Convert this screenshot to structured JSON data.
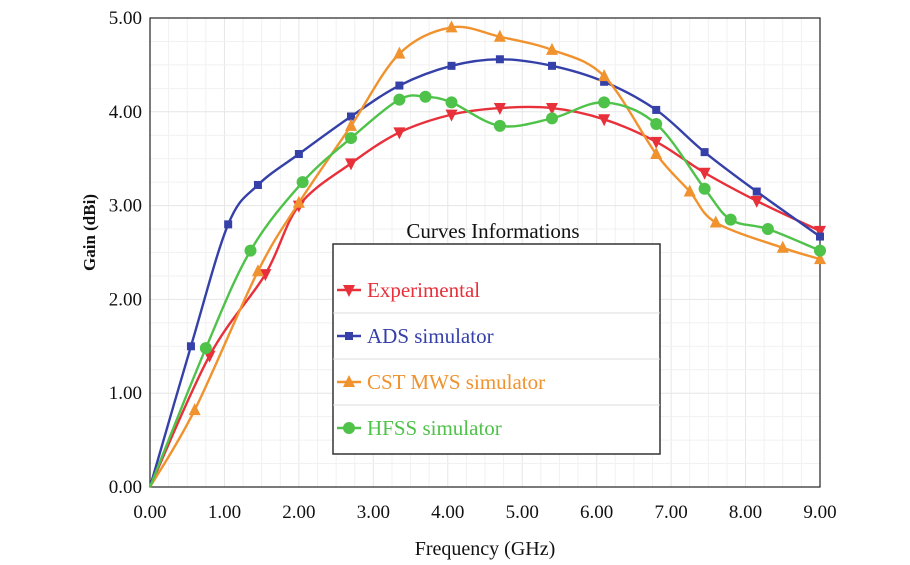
{
  "chart_data": {
    "type": "line",
    "title": "",
    "xlabel": "Frequency (GHz)",
    "ylabel": "Gain (dBi)",
    "xlim": [
      0,
      9
    ],
    "ylim": [
      0,
      5
    ],
    "x_ticks": [
      "0.00",
      "1.00",
      "2.00",
      "3.00",
      "4.00",
      "5.00",
      "6.00",
      "7.00",
      "8.00",
      "9.00"
    ],
    "y_ticks": [
      "0.00",
      "1.00",
      "2.00",
      "3.00",
      "4.00",
      "5.00"
    ],
    "grid": true,
    "legend": {
      "title": "Curves Informations",
      "placement": "center"
    },
    "series": [
      {
        "name": "Experimental",
        "color": "#e8303a",
        "marker": "triangle-down",
        "points": [
          [
            0,
            0
          ],
          [
            0.8,
            1.4
          ],
          [
            1.55,
            2.27
          ],
          [
            2.0,
            3.0
          ],
          [
            2.7,
            3.45
          ],
          [
            3.35,
            3.78
          ],
          [
            4.05,
            3.97
          ],
          [
            4.7,
            4.04
          ],
          [
            5.4,
            4.04
          ],
          [
            6.1,
            3.92
          ],
          [
            6.8,
            3.68
          ],
          [
            7.45,
            3.35
          ],
          [
            8.15,
            3.05
          ],
          [
            9.0,
            2.73
          ]
        ]
      },
      {
        "name": "ADS simulator",
        "color": "#3540a8",
        "marker": "square",
        "points": [
          [
            0,
            0
          ],
          [
            0.55,
            1.5
          ],
          [
            1.05,
            2.8
          ],
          [
            1.45,
            3.22
          ],
          [
            2.0,
            3.55
          ],
          [
            2.7,
            3.95
          ],
          [
            3.35,
            4.28
          ],
          [
            4.05,
            4.49
          ],
          [
            4.7,
            4.56
          ],
          [
            5.4,
            4.49
          ],
          [
            6.1,
            4.32
          ],
          [
            6.8,
            4.02
          ],
          [
            7.45,
            3.57
          ],
          [
            8.15,
            3.15
          ],
          [
            9.0,
            2.67
          ]
        ]
      },
      {
        "name": "CST MWS simulator",
        "color": "#f0922e",
        "marker": "triangle-up",
        "points": [
          [
            0,
            0
          ],
          [
            0.6,
            0.82
          ],
          [
            1.45,
            2.3
          ],
          [
            2.0,
            3.03
          ],
          [
            2.7,
            3.85
          ],
          [
            3.35,
            4.62
          ],
          [
            4.05,
            4.9
          ],
          [
            4.7,
            4.8
          ],
          [
            5.4,
            4.66
          ],
          [
            6.1,
            4.38
          ],
          [
            6.8,
            3.55
          ],
          [
            7.25,
            3.15
          ],
          [
            7.6,
            2.82
          ],
          [
            8.5,
            2.55
          ],
          [
            9.0,
            2.43
          ]
        ]
      },
      {
        "name": "HFSS simulator",
        "color": "#4fc24a",
        "marker": "circle",
        "points": [
          [
            0,
            0
          ],
          [
            0.75,
            1.48
          ],
          [
            1.35,
            2.52
          ],
          [
            2.05,
            3.25
          ],
          [
            2.7,
            3.72
          ],
          [
            3.35,
            4.13
          ],
          [
            3.7,
            4.16
          ],
          [
            4.05,
            4.1
          ],
          [
            4.7,
            3.85
          ],
          [
            5.4,
            3.93
          ],
          [
            6.1,
            4.1
          ],
          [
            6.8,
            3.87
          ],
          [
            7.45,
            3.18
          ],
          [
            7.8,
            2.85
          ],
          [
            8.3,
            2.75
          ],
          [
            9.0,
            2.52
          ]
        ]
      }
    ]
  }
}
